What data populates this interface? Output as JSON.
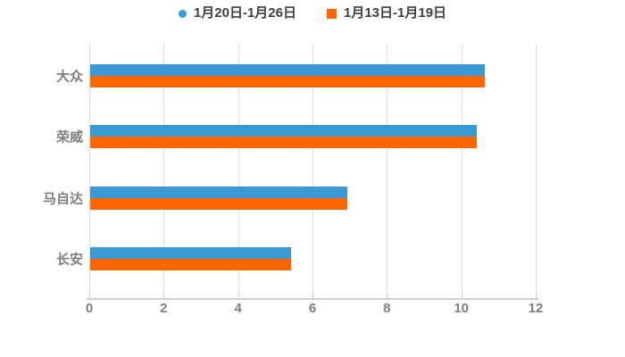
{
  "page": {
    "background_color": "#ffffff"
  },
  "legend": {
    "items": [
      {
        "label": "1月20日-1月26日",
        "marker": "circle",
        "color": "#3899d4"
      },
      {
        "label": "1月13日-1月19日",
        "marker": "square",
        "color": "#ff6600"
      }
    ],
    "text_color": "#3f3f3f",
    "position": "top-center"
  },
  "chart_data": {
    "type": "bar",
    "orientation": "horizontal",
    "title": "",
    "xlabel": "",
    "ylabel": "",
    "categories": [
      "大众",
      "荣威",
      "马自达",
      "长安"
    ],
    "series": [
      {
        "name": "1月20日-1月26日",
        "color": "#3899d4",
        "values": [
          10.6,
          10.4,
          6.9,
          5.4
        ]
      },
      {
        "name": "1月13日-1月19日",
        "color": "#ff6600",
        "values": [
          10.6,
          10.4,
          6.9,
          5.4
        ]
      }
    ],
    "xlim": [
      0,
      12
    ],
    "xticks": [
      0,
      2,
      4,
      6,
      8,
      10,
      12
    ],
    "grid": true,
    "legend_position": "top"
  },
  "axis_style": {
    "grid_color": "#dcdcdc",
    "axis_line_color": "#d0d0d0",
    "tick_color": "#c9c9c9",
    "label_color": "#7f7f7f"
  }
}
